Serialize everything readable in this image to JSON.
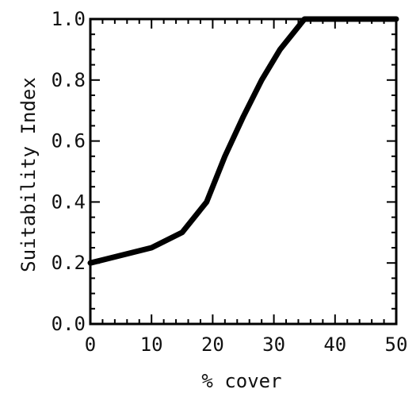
{
  "chart_data": {
    "type": "line",
    "title": "",
    "xlabel": "% cover",
    "ylabel": "Suitability Index",
    "xlim": [
      0,
      50
    ],
    "ylim": [
      0,
      1.0
    ],
    "x_ticks": [
      0,
      10,
      20,
      30,
      40,
      50
    ],
    "x_tick_labels": [
      "0",
      "10",
      "20",
      "30",
      "40",
      "50"
    ],
    "y_ticks": [
      0,
      0.2,
      0.4,
      0.6,
      0.8,
      1.0
    ],
    "y_tick_labels": [
      "0.0",
      "0.2",
      "0.4",
      "0.6",
      "0.8",
      "1.0"
    ],
    "grid": false,
    "legend": "none",
    "series": [
      {
        "x": [
          0,
          10,
          15,
          19,
          22,
          25,
          28,
          31,
          35,
          50
        ],
        "values": [
          0.2,
          0.25,
          0.3,
          0.4,
          0.55,
          0.68,
          0.8,
          0.9,
          1.0,
          1.0
        ],
        "color": "#000000"
      }
    ]
  }
}
